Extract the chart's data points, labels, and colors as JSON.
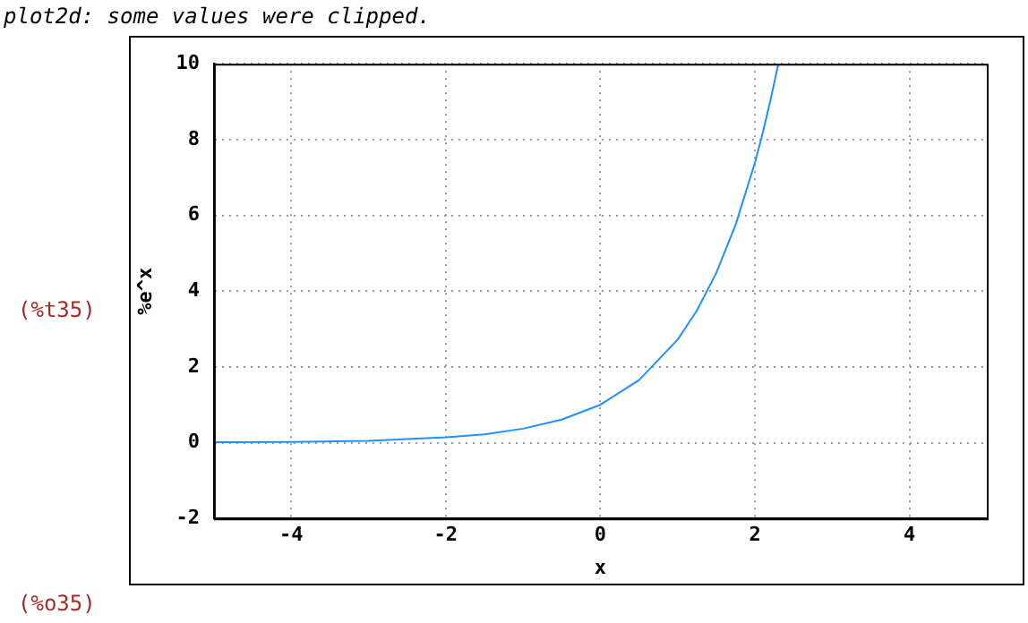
{
  "chart_data": {
    "type": "line",
    "xlabel": "x",
    "ylabel": "%e^x",
    "annotations": [
      "plot2d: some values were clipped.",
      "(%t35)",
      "(%o35)"
    ],
    "series": [
      {
        "color": "#1e90ff",
        "x": [
          -5,
          -4,
          -3,
          -2,
          -1.5,
          -1,
          -0.5,
          0,
          0.5,
          1,
          1.25,
          1.5,
          1.75,
          2,
          2.1,
          2.2,
          2.3
        ],
        "values": [
          0.01,
          0.02,
          0.05,
          0.14,
          0.22,
          0.37,
          0.61,
          1,
          1.65,
          2.72,
          3.49,
          4.48,
          5.75,
          7.39,
          8.17,
          9.03,
          9.97
        ]
      }
    ],
    "xlim": [
      -5,
      5
    ],
    "xticks": [
      -4,
      -2,
      0,
      2,
      4
    ],
    "ylim": [
      -2,
      10
    ],
    "yticks": [
      -2,
      0,
      2,
      4,
      6,
      8,
      10
    ],
    "grid": true,
    "legend": false,
    "marker": "none",
    "line_style": "solid"
  }
}
